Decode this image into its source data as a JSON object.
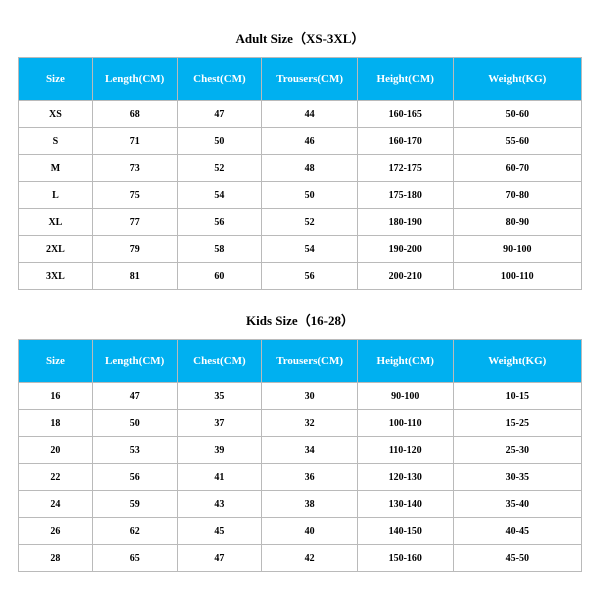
{
  "styles": {
    "header_bg": "#00b0f0",
    "header_text": "#ffffff",
    "cell_text": "#000000",
    "border_color": "#bababa",
    "background_color": "#ffffff",
    "title_fontsize": 13,
    "header_fontsize": 11,
    "cell_fontsize": 10,
    "font_family": "Times New Roman, serif"
  },
  "adult": {
    "title": "Adult Size（XS-3XL）",
    "columns": [
      "Size",
      "Length(CM)",
      "Chest(CM)",
      "Trousers(CM)",
      "Height(CM)",
      "Weight(KG)"
    ],
    "rows": [
      [
        "XS",
        "68",
        "47",
        "44",
        "160-165",
        "50-60"
      ],
      [
        "S",
        "71",
        "50",
        "46",
        "160-170",
        "55-60"
      ],
      [
        "M",
        "73",
        "52",
        "48",
        "172-175",
        "60-70"
      ],
      [
        "L",
        "75",
        "54",
        "50",
        "175-180",
        "70-80"
      ],
      [
        "XL",
        "77",
        "56",
        "52",
        "180-190",
        "80-90"
      ],
      [
        "2XL",
        "79",
        "58",
        "54",
        "190-200",
        "90-100"
      ],
      [
        "3XL",
        "81",
        "60",
        "56",
        "200-210",
        "100-110"
      ]
    ]
  },
  "kids": {
    "title": "Kids Size（16-28）",
    "columns": [
      "Size",
      "Length(CM)",
      "Chest(CM)",
      "Trousers(CM)",
      "Height(CM)",
      "Weight(KG)"
    ],
    "rows": [
      [
        "16",
        "47",
        "35",
        "30",
        "90-100",
        "10-15"
      ],
      [
        "18",
        "50",
        "37",
        "32",
        "100-110",
        "15-25"
      ],
      [
        "20",
        "53",
        "39",
        "34",
        "110-120",
        "25-30"
      ],
      [
        "22",
        "56",
        "41",
        "36",
        "120-130",
        "30-35"
      ],
      [
        "24",
        "59",
        "43",
        "38",
        "130-140",
        "35-40"
      ],
      [
        "26",
        "62",
        "45",
        "40",
        "140-150",
        "40-45"
      ],
      [
        "28",
        "65",
        "47",
        "42",
        "150-160",
        "45-50"
      ]
    ]
  }
}
